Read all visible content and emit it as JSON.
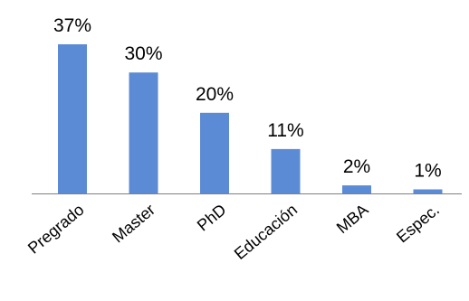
{
  "chart_data": {
    "type": "bar",
    "title": "",
    "xlabel": "",
    "ylabel": "",
    "categories": [
      "Pregrado",
      "Master",
      "PhD",
      "Educación",
      "MBA",
      "Espec."
    ],
    "values": [
      37,
      30,
      20,
      11,
      2,
      1
    ],
    "data_labels": [
      "37%",
      "30%",
      "20%",
      "11%",
      "2%",
      "1%"
    ],
    "ylim": [
      0,
      40
    ],
    "grid": false,
    "legend": "none",
    "bar_color": "#5B8BD4",
    "axis_color": "#808080"
  }
}
